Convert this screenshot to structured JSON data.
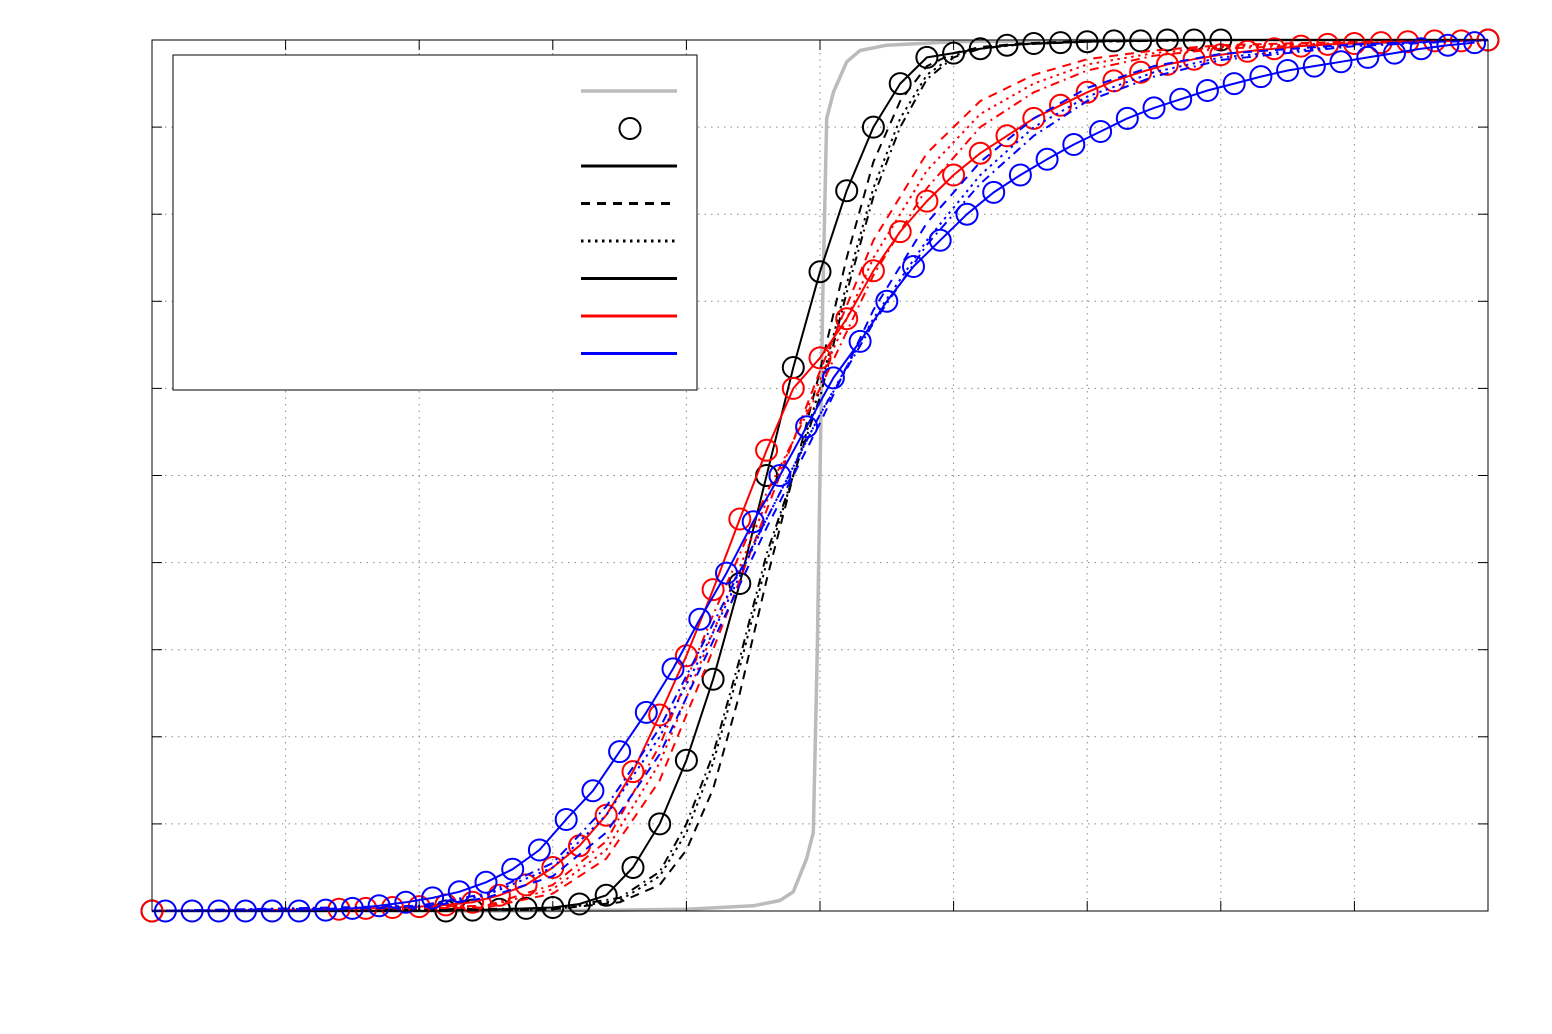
{
  "chart_data": {
    "type": "line",
    "title": "",
    "xlabel": "",
    "ylabel": "",
    "xlim": [
      -5,
      5
    ],
    "ylim": [
      0,
      1
    ],
    "x_ticks": [
      -5,
      -4,
      -3,
      -2,
      -1,
      0,
      1,
      2,
      3,
      4,
      5
    ],
    "y_ticks": [
      0,
      0.1,
      0.2,
      0.3,
      0.4,
      0.5,
      0.6,
      0.7,
      0.8,
      0.9,
      1
    ],
    "grid": true,
    "legend": {
      "placement": "top-left",
      "entries": [
        {
          "color": "#bbbbbb",
          "style": "solid",
          "marker": "none"
        },
        {
          "color": "#000000",
          "style": "none",
          "marker": "circle"
        },
        {
          "color": "#000000",
          "style": "solid",
          "marker": "none"
        },
        {
          "color": "#000000",
          "style": "dashed",
          "marker": "none"
        },
        {
          "color": "#000000",
          "style": "dotted",
          "marker": "none"
        },
        {
          "color": "#000000",
          "style": "solid",
          "marker": "none"
        },
        {
          "color": "#ff0000",
          "style": "solid",
          "marker": "none"
        },
        {
          "color": "#0000ff",
          "style": "solid",
          "marker": "none"
        }
      ]
    },
    "series": [
      {
        "color": "#bbbbbb",
        "style": "solid",
        "width": 3.5,
        "marker": "none",
        "x": [
          -5,
          -2.5,
          -1.5,
          -1,
          -0.5,
          -0.3,
          -0.2,
          -0.1,
          -0.05,
          -0.02,
          0,
          0.02,
          0.05,
          0.1,
          0.2,
          0.3,
          0.5,
          1,
          1.5,
          2.5,
          5
        ],
        "y": [
          0,
          0,
          0.001,
          0.002,
          0.006,
          0.012,
          0.022,
          0.06,
          0.09,
          0.3,
          0.5,
          0.7,
          0.91,
          0.94,
          0.975,
          0.988,
          0.994,
          0.998,
          0.999,
          1,
          1
        ]
      },
      {
        "color": "#000000",
        "style": "solid",
        "width": 2,
        "marker": "circle",
        "x": [
          -5,
          -2.8,
          -2.6,
          -2.4,
          -2.2,
          -2,
          -1.8,
          -1.6,
          -1.4,
          -1.2,
          -1,
          -0.8,
          -0.6,
          -0.4,
          -0.2,
          0,
          0.2,
          0.4,
          0.6,
          0.8,
          1,
          1.2,
          1.4,
          1.6,
          1.8,
          2,
          2.2,
          2.4,
          2.6,
          2.8,
          3,
          5
        ],
        "y": [
          0,
          0,
          0.001,
          0.002,
          0.003,
          0.004,
          0.008,
          0.018,
          0.05,
          0.1,
          0.173,
          0.266,
          0.376,
          0.5,
          0.624,
          0.734,
          0.827,
          0.9,
          0.95,
          0.98,
          0.985,
          0.99,
          0.994,
          0.996,
          0.997,
          0.998,
          0.999,
          0.999,
          1,
          1,
          1,
          1
        ]
      },
      {
        "color": "#000000",
        "style": "dashed",
        "width": 2,
        "marker": "none",
        "x": [
          -5,
          -2,
          -1.5,
          -1.2,
          -1,
          -0.8,
          -0.6,
          -0.4,
          -0.2,
          0,
          0.2,
          0.4,
          0.6,
          0.8,
          1,
          1.2,
          1.5,
          2,
          3,
          5
        ],
        "y": [
          0,
          0.002,
          0.01,
          0.03,
          0.07,
          0.14,
          0.25,
          0.38,
          0.5,
          0.62,
          0.75,
          0.86,
          0.93,
          0.97,
          0.985,
          0.992,
          0.996,
          0.999,
          1,
          1
        ]
      },
      {
        "color": "#000000",
        "style": "dotted",
        "width": 2,
        "marker": "none",
        "x": [
          -5,
          -2,
          -1.5,
          -1.2,
          -1,
          -0.8,
          -0.6,
          -0.4,
          -0.2,
          0,
          0.2,
          0.4,
          0.6,
          0.8,
          1,
          1.2,
          1.5,
          2,
          3,
          5
        ],
        "y": [
          0,
          0.002,
          0.012,
          0.04,
          0.09,
          0.17,
          0.28,
          0.4,
          0.5,
          0.6,
          0.72,
          0.83,
          0.91,
          0.96,
          0.982,
          0.99,
          0.995,
          0.998,
          1,
          1
        ]
      },
      {
        "color": "#000000",
        "style": "dashdot",
        "width": 2,
        "marker": "none",
        "x": [
          -5,
          -2,
          -1.5,
          -1.2,
          -1,
          -0.8,
          -0.6,
          -0.4,
          -0.2,
          0,
          0.2,
          0.4,
          0.6,
          0.8,
          1,
          1.2,
          1.5,
          2,
          3,
          5
        ],
        "y": [
          0,
          0.003,
          0.015,
          0.045,
          0.1,
          0.18,
          0.29,
          0.41,
          0.5,
          0.59,
          0.71,
          0.82,
          0.9,
          0.955,
          0.98,
          0.99,
          0.995,
          0.998,
          1,
          1
        ]
      },
      {
        "color": "#ff0000",
        "style": "solid",
        "width": 2,
        "marker": "circle",
        "x": [
          -5,
          -3.6,
          -3.4,
          -3.2,
          -3,
          -2.8,
          -2.6,
          -2.4,
          -2.2,
          -2,
          -1.8,
          -1.6,
          -1.4,
          -1.2,
          -1,
          -0.8,
          -0.6,
          -0.4,
          -0.2,
          0,
          0.2,
          0.4,
          0.6,
          0.8,
          1,
          1.2,
          1.4,
          1.6,
          1.8,
          2,
          2.2,
          2.4,
          2.6,
          2.8,
          3,
          3.2,
          3.4,
          3.6,
          3.8,
          4,
          4.2,
          4.4,
          4.6,
          4.8,
          5
        ],
        "y": [
          0,
          0.002,
          0.003,
          0.004,
          0.005,
          0.007,
          0.01,
          0.018,
          0.03,
          0.05,
          0.075,
          0.11,
          0.16,
          0.225,
          0.293,
          0.369,
          0.45,
          0.529,
          0.6,
          0.635,
          0.68,
          0.735,
          0.78,
          0.815,
          0.845,
          0.87,
          0.89,
          0.91,
          0.925,
          0.94,
          0.953,
          0.963,
          0.972,
          0.978,
          0.983,
          0.987,
          0.99,
          0.993,
          0.995,
          0.996,
          0.997,
          0.998,
          0.999,
          0.999,
          1
        ]
      },
      {
        "color": "#ff0000",
        "style": "dashed",
        "width": 2,
        "marker": "none",
        "x": [
          -5,
          -2.5,
          -2,
          -1.6,
          -1.2,
          -0.8,
          -0.4,
          0,
          0.4,
          0.8,
          1.2,
          1.6,
          2,
          2.5,
          3,
          4,
          5
        ],
        "y": [
          0,
          0.004,
          0.02,
          0.06,
          0.15,
          0.3,
          0.46,
          0.62,
          0.77,
          0.87,
          0.93,
          0.96,
          0.978,
          0.988,
          0.994,
          0.998,
          1
        ]
      },
      {
        "color": "#ff0000",
        "style": "dotted",
        "width": 2,
        "marker": "none",
        "x": [
          -5,
          -2.5,
          -2,
          -1.6,
          -1.2,
          -0.8,
          -0.4,
          0,
          0.4,
          0.8,
          1.2,
          1.6,
          2,
          2.5,
          3,
          4,
          5
        ],
        "y": [
          0,
          0.005,
          0.025,
          0.07,
          0.17,
          0.32,
          0.47,
          0.61,
          0.75,
          0.85,
          0.915,
          0.95,
          0.972,
          0.985,
          0.992,
          0.997,
          1
        ]
      },
      {
        "color": "#ff0000",
        "style": "dashdot",
        "width": 2,
        "marker": "none",
        "x": [
          -5,
          -2.5,
          -2,
          -1.6,
          -1.2,
          -0.8,
          -0.4,
          0,
          0.4,
          0.8,
          1.2,
          1.6,
          2,
          2.5,
          3,
          4,
          5
        ],
        "y": [
          0,
          0.006,
          0.03,
          0.08,
          0.19,
          0.34,
          0.48,
          0.6,
          0.73,
          0.83,
          0.9,
          0.94,
          0.965,
          0.982,
          0.99,
          0.996,
          1
        ]
      },
      {
        "color": "#0000ff",
        "style": "solid",
        "width": 2,
        "marker": "circle",
        "x": [
          -4.9,
          -4.7,
          -4.5,
          -4.3,
          -4.1,
          -3.9,
          -3.7,
          -3.5,
          -3.3,
          -3.1,
          -2.9,
          -2.7,
          -2.5,
          -2.3,
          -2.1,
          -1.9,
          -1.7,
          -1.5,
          -1.3,
          -1.1,
          -0.9,
          -0.7,
          -0.5,
          -0.3,
          -0.1,
          0.1,
          0.3,
          0.5,
          0.7,
          0.9,
          1.1,
          1.3,
          1.5,
          1.7,
          1.9,
          2.1,
          2.3,
          2.5,
          2.7,
          2.9,
          3.1,
          3.3,
          3.5,
          3.7,
          3.9,
          4.1,
          4.3,
          4.5,
          4.7,
          4.9
        ],
        "y": [
          0,
          0,
          0,
          0,
          0,
          0,
          0.001,
          0.003,
          0.006,
          0.01,
          0.015,
          0.022,
          0.033,
          0.048,
          0.07,
          0.105,
          0.138,
          0.183,
          0.228,
          0.278,
          0.335,
          0.388,
          0.447,
          0.5,
          0.556,
          0.612,
          0.654,
          0.7,
          0.74,
          0.77,
          0.8,
          0.825,
          0.845,
          0.863,
          0.88,
          0.895,
          0.91,
          0.922,
          0.932,
          0.942,
          0.95,
          0.958,
          0.965,
          0.97,
          0.975,
          0.98,
          0.985,
          0.99,
          0.994,
          0.997
        ]
      },
      {
        "color": "#0000ff",
        "style": "dashed",
        "width": 2,
        "marker": "none",
        "x": [
          -5,
          -3,
          -2.5,
          -2,
          -1.6,
          -1.2,
          -0.8,
          -0.4,
          0,
          0.4,
          0.8,
          1.2,
          1.6,
          2,
          2.5,
          3,
          4,
          5
        ],
        "y": [
          0,
          0.004,
          0.015,
          0.04,
          0.09,
          0.18,
          0.31,
          0.44,
          0.56,
          0.69,
          0.79,
          0.86,
          0.91,
          0.945,
          0.97,
          0.984,
          0.995,
          1
        ]
      },
      {
        "color": "#0000ff",
        "style": "dotted",
        "width": 2,
        "marker": "none",
        "x": [
          -5,
          -3,
          -2.5,
          -2,
          -1.6,
          -1.2,
          -0.8,
          -0.4,
          0,
          0.4,
          0.8,
          1.2,
          1.6,
          2,
          2.5,
          3,
          4,
          5
        ],
        "y": [
          0,
          0.005,
          0.018,
          0.05,
          0.11,
          0.2,
          0.32,
          0.45,
          0.57,
          0.68,
          0.77,
          0.845,
          0.9,
          0.935,
          0.963,
          0.98,
          0.994,
          1
        ]
      },
      {
        "color": "#0000ff",
        "style": "dashdot",
        "width": 2,
        "marker": "none",
        "x": [
          -5,
          -3,
          -2.5,
          -2,
          -1.6,
          -1.2,
          -0.8,
          -0.4,
          0,
          0.4,
          0.8,
          1.2,
          1.6,
          2,
          2.5,
          3,
          4,
          5
        ],
        "y": [
          0,
          0.006,
          0.02,
          0.055,
          0.12,
          0.21,
          0.33,
          0.45,
          0.57,
          0.675,
          0.765,
          0.835,
          0.89,
          0.93,
          0.958,
          0.977,
          0.993,
          1
        ]
      }
    ]
  }
}
